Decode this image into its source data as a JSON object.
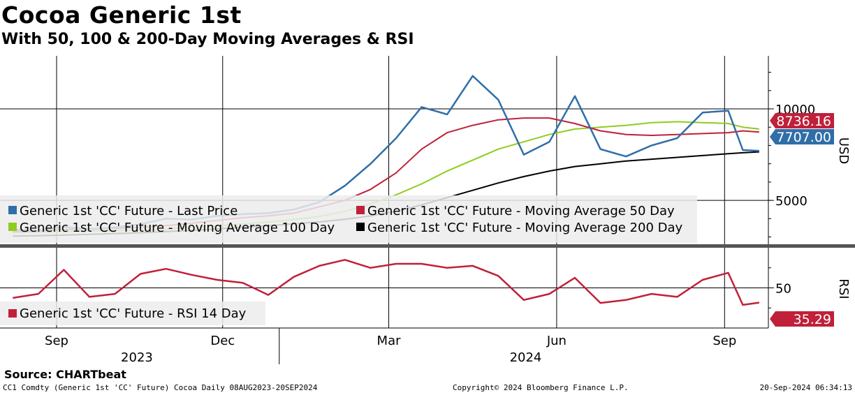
{
  "header": {
    "title": "Cocoa Generic 1st",
    "subtitle": "With 50, 100 & 200-Day Moving Averages & RSI"
  },
  "footer": {
    "source": "Source: CHARTbeat",
    "description": "CC1 Comdty (Generic 1st 'CC' Future) Cocoa  Daily 08AUG2023-20SEP2024",
    "copyright": "Copyright© 2024 Bloomberg Finance L.P.",
    "timestamp": "20-Sep-2024 06:34:13"
  },
  "colors": {
    "price": "#2f6ea8",
    "ma50": "#c0203a",
    "ma100": "#8fcc1e",
    "ma200": "#000000",
    "rsi": "#c0203a",
    "divider": "#555555",
    "grid": "#000000"
  },
  "chart_data": [
    {
      "type": "line",
      "panel": "price",
      "ylabel": "USD",
      "ylim": [
        2600,
        12900
      ],
      "yticks": [
        5000,
        10000
      ],
      "x": [
        "2023-08-08",
        "2023-08-22",
        "2023-09-05",
        "2023-09-19",
        "2023-10-03",
        "2023-10-17",
        "2023-10-31",
        "2023-11-14",
        "2023-11-28",
        "2023-12-12",
        "2023-12-26",
        "2024-01-09",
        "2024-01-23",
        "2024-02-06",
        "2024-02-20",
        "2024-03-05",
        "2024-03-19",
        "2024-04-02",
        "2024-04-16",
        "2024-04-30",
        "2024-05-14",
        "2024-05-28",
        "2024-06-11",
        "2024-06-25",
        "2024-07-09",
        "2024-07-23",
        "2024-08-06",
        "2024-08-20",
        "2024-09-03",
        "2024-09-11",
        "2024-09-20"
      ],
      "series": [
        {
          "name": "Generic 1st 'CC' Future - Last Price",
          "values": [
            3400,
            3350,
            3550,
            3420,
            3520,
            3700,
            4000,
            3950,
            4150,
            4250,
            4300,
            4500,
            4900,
            5800,
            7000,
            8400,
            10100,
            9700,
            11800,
            10500,
            7500,
            8200,
            10700,
            7800,
            7400,
            8000,
            8400,
            9800,
            9900,
            7750,
            7707
          ]
        },
        {
          "name": "Generic 1st 'CC' Future - Moving Average 50 Day",
          "values": [
            3300,
            3310,
            3400,
            3450,
            3470,
            3520,
            3620,
            3750,
            3900,
            4050,
            4150,
            4300,
            4650,
            5000,
            5600,
            6500,
            7800,
            8700,
            9100,
            9400,
            9500,
            9500,
            9200,
            8800,
            8600,
            8550,
            8600,
            8650,
            8700,
            8800,
            8736
          ]
        },
        {
          "name": "Generic 1st 'CC' Future - Moving Average 100 Day",
          "values": [
            3250,
            3260,
            3290,
            3320,
            3350,
            3380,
            3440,
            3520,
            3610,
            3710,
            3810,
            3950,
            4120,
            4400,
            4800,
            5300,
            5900,
            6600,
            7200,
            7800,
            8200,
            8600,
            8900,
            9000,
            9100,
            9250,
            9300,
            9250,
            9200,
            9000,
            8900
          ]
        },
        {
          "name": "Generic 1st 'CC' Future - Moving Average 200 Day",
          "values": [
            3050,
            3070,
            3100,
            3140,
            3180,
            3230,
            3290,
            3360,
            3440,
            3530,
            3620,
            3720,
            3820,
            3960,
            4150,
            4400,
            4750,
            5150,
            5550,
            5950,
            6300,
            6600,
            6850,
            7000,
            7150,
            7250,
            7350,
            7450,
            7550,
            7600,
            7650
          ]
        }
      ],
      "last_value_labels": [
        {
          "series": "Generic 1st 'CC' Future - Moving Average 50 Day",
          "text": "8736.16"
        },
        {
          "series": "Generic 1st 'CC' Future - Last Price",
          "text": "7707.00"
        }
      ]
    },
    {
      "type": "line",
      "panel": "rsi",
      "ylabel": "RSI",
      "ylim": [
        10,
        90
      ],
      "yticks": [
        50
      ],
      "x": [
        "2023-08-08",
        "2023-08-22",
        "2023-09-05",
        "2023-09-19",
        "2023-10-03",
        "2023-10-17",
        "2023-10-31",
        "2023-11-14",
        "2023-11-28",
        "2023-12-12",
        "2023-12-26",
        "2024-01-09",
        "2024-01-23",
        "2024-02-06",
        "2024-02-20",
        "2024-03-05",
        "2024-03-19",
        "2024-04-02",
        "2024-04-16",
        "2024-04-30",
        "2024-05-14",
        "2024-05-28",
        "2024-06-11",
        "2024-06-25",
        "2024-07-09",
        "2024-07-23",
        "2024-08-06",
        "2024-08-20",
        "2024-09-03",
        "2024-09-11",
        "2024-09-20"
      ],
      "series": [
        {
          "name": "Generic 1st 'CC' Future - RSI 14 Day",
          "values": [
            40,
            44,
            68,
            41,
            44,
            64,
            69,
            63,
            58,
            55,
            43,
            61,
            72,
            78,
            70,
            74,
            74,
            70,
            72,
            62,
            38,
            44,
            60,
            35,
            38,
            44,
            41,
            58,
            65,
            33,
            35.29
          ]
        }
      ],
      "last_value_labels": [
        {
          "series": "Generic 1st 'CC' Future - RSI 14 Day",
          "text": "35.29"
        }
      ]
    }
  ],
  "x_axis": {
    "month_labels": [
      {
        "date": "2023-09-01",
        "label": "Sep"
      },
      {
        "date": "2023-12-01",
        "label": "Dec"
      },
      {
        "date": "2024-03-01",
        "label": "Mar"
      },
      {
        "date": "2024-06-01",
        "label": "Jun"
      },
      {
        "date": "2024-09-01",
        "label": "Sep"
      }
    ],
    "year_labels": [
      {
        "date": "2023-10-15",
        "label": "2023"
      },
      {
        "date": "2024-05-15",
        "label": "2024"
      }
    ],
    "gridlines": [
      "2023-09-01",
      "2023-12-01",
      "2024-03-01",
      "2024-06-01",
      "2024-09-01"
    ],
    "year_divider": "2024-01-01"
  }
}
